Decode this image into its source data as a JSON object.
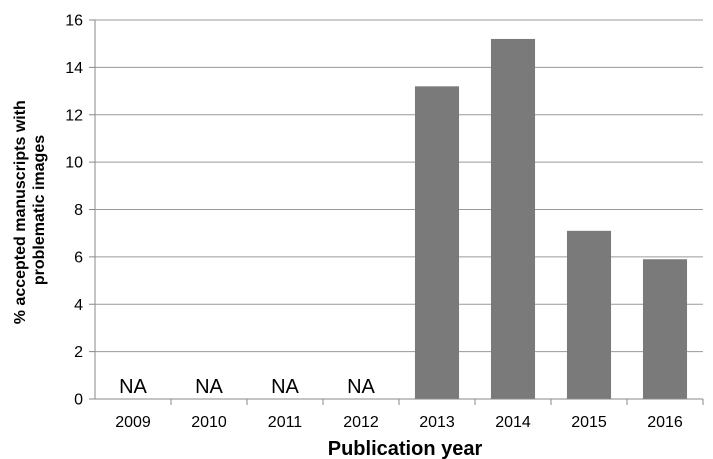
{
  "chart_data": {
    "type": "bar",
    "categories": [
      "2009",
      "2010",
      "2011",
      "2012",
      "2013",
      "2014",
      "2015",
      "2016"
    ],
    "values": [
      null,
      null,
      null,
      null,
      13.2,
      15.2,
      7.1,
      5.9
    ],
    "value_labels": [
      "NA",
      "NA",
      "NA",
      "NA",
      "",
      "",
      "",
      ""
    ],
    "xlabel": "Publication year",
    "ylabel_lines": [
      "% accepted manuscripts with",
      "problematic images"
    ],
    "ylim": [
      0,
      16
    ],
    "yticks": [
      "0",
      "2",
      "4",
      "6",
      "8",
      "10",
      "12",
      "14",
      "16"
    ],
    "grid": true,
    "bar_color": "#7a7a7a"
  }
}
